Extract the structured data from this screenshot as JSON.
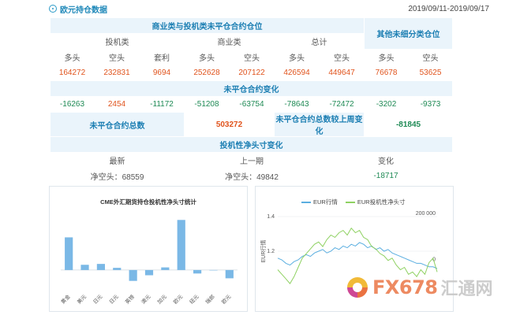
{
  "header": {
    "title": "欧元持仓数据",
    "date_range": "2019/09/11-2019/09/17"
  },
  "table": {
    "section1_title": "商业类与投机类未平仓合约仓位",
    "other_title": "其他未细分类仓位",
    "group_spec": "投机类",
    "group_comm": "商业类",
    "group_total": "总计",
    "col_long": "多头",
    "col_short": "空头",
    "col_arb": "套利",
    "values": [
      "164272",
      "232831",
      "9694",
      "252628",
      "207122",
      "426594",
      "449647",
      "76678",
      "53625"
    ],
    "change_title": "未平仓合约变化",
    "changes": [
      "-16263",
      "2454",
      "-11172",
      "-51208",
      "-63754",
      "-78643",
      "-72472",
      "-3202",
      "-9373"
    ],
    "oi_total_label": "未平仓合约总数",
    "oi_total_value": "503272",
    "oi_change_label": "未平仓合约总数较上周变化",
    "oi_change_value": "-81845",
    "net_title": "投机性净头寸变化",
    "net_latest_label": "最新",
    "net_prev_label": "上一期",
    "net_change_label": "变化",
    "net_latest_value": "净空头：68559",
    "net_prev_value": "净空头：49842",
    "net_change_value": "-18717"
  },
  "chart_data": [
    {
      "type": "bar",
      "title": "CME外汇期货持仓投机性净头寸统计",
      "categories": [
        "黄金",
        "美元",
        "日元",
        "日元",
        "英镑",
        "澳元",
        "加元",
        "欧元",
        "纽元",
        "瑞郎",
        "欧元"
      ],
      "values": [
        0.75,
        0.12,
        0.14,
        0.05,
        -0.25,
        -0.12,
        0.06,
        1.15,
        -0.08,
        0.0,
        -0.19
      ],
      "ylim": [
        -0.4,
        1.3
      ],
      "color": "#7ab8e6"
    },
    {
      "type": "line",
      "series": [
        {
          "name": "EUR行情",
          "color": "#5aaee0",
          "axis": "left",
          "values": [
            1.16,
            1.15,
            1.13,
            1.12,
            1.14,
            1.15,
            1.17,
            1.18,
            1.17,
            1.19,
            1.2,
            1.21,
            1.19,
            1.2,
            1.22,
            1.21,
            1.23,
            1.22,
            1.24,
            1.23,
            1.25,
            1.24,
            1.22,
            1.23,
            1.21,
            1.22,
            1.2,
            1.21,
            1.19,
            1.18,
            1.17,
            1.16,
            1.15,
            1.14,
            1.13,
            1.13,
            1.12,
            1.11,
            1.11,
            1.1
          ]
        },
        {
          "name": "EUR投机性净头寸",
          "color": "#8fd162",
          "axis": "right",
          "values": [
            -30000,
            -50000,
            -70000,
            -90000,
            -60000,
            -20000,
            20000,
            40000,
            60000,
            80000,
            90000,
            70000,
            100000,
            120000,
            110000,
            130000,
            140000,
            120000,
            150000,
            130000,
            140000,
            110000,
            100000,
            70000,
            60000,
            40000,
            30000,
            10000,
            20000,
            -10000,
            -30000,
            -20000,
            -50000,
            -40000,
            -60000,
            -30000,
            -50000,
            0,
            20000,
            -40000
          ]
        }
      ],
      "left_ticks": [
        "1.4",
        "1.2"
      ],
      "right_ticks": [
        "200 000",
        "0"
      ],
      "ylabel_left": "EUR行情",
      "left_range": [
        1.0,
        1.4
      ],
      "right_range": [
        -100000,
        200000
      ]
    }
  ],
  "watermark": {
    "fx": "FX678",
    "cn": "汇通网"
  }
}
